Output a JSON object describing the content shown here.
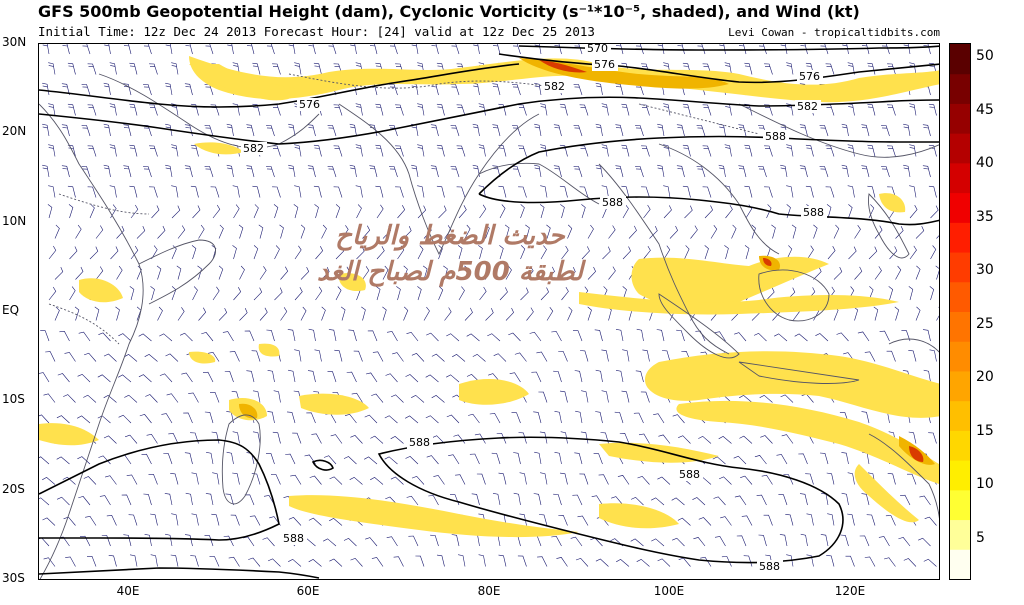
{
  "title": "GFS 500mb Geopotential Height (dam), Cyclonic Vorticity (s⁻¹*10⁻⁵, shaded), and Wind (kt)",
  "subtitle": "Initial Time: 12z Dec 24 2013 Forecast Hour: [24] valid at 12z Dec 25 2013",
  "credit": "Levi Cowan - tropicaltidbits.com",
  "overlay_text": {
    "line1": "حديث الضغط والرياح",
    "line2": "لطبقة 500م لصباح الغد"
  },
  "lat_labels": [
    "30N",
    "20N",
    "10N",
    "EQ",
    "10S",
    "20S",
    "30S"
  ],
  "lon_labels": [
    "40E",
    "60E",
    "80E",
    "100E",
    "120E"
  ],
  "colorbar": {
    "ticks": [
      "50",
      "45",
      "40",
      "35",
      "30",
      "25",
      "20",
      "15",
      "10",
      "5"
    ],
    "colors": [
      "#fffff0",
      "#ffff99",
      "#ffff33",
      "#ffee00",
      "#ffd700",
      "#ffbf00",
      "#ffa500",
      "#ff8c00",
      "#ff7400",
      "#ff5a00",
      "#ff3c00",
      "#ff1e00",
      "#f00000",
      "#d40000",
      "#b40000",
      "#960000",
      "#780000",
      "#5a0000"
    ]
  },
  "contour_labels": [
    "570",
    "576",
    "576",
    "576",
    "582",
    "582",
    "582",
    "588",
    "588",
    "588",
    "588",
    "588",
    "588",
    "588"
  ],
  "colors": {
    "land": "#555566",
    "barb": "#1a1a70",
    "contour": "#000000",
    "vort_light": "#ffe14d",
    "vort_mid": "#f0b400",
    "vort_strong": "#d93b00"
  }
}
